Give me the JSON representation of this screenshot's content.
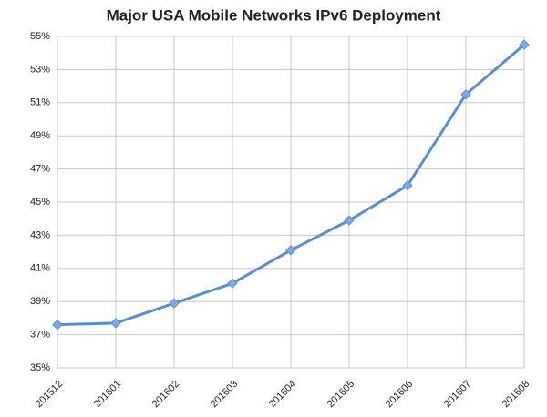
{
  "chart_data": {
    "type": "line",
    "title": "Major USA Mobile Networks IPv6 Deployment",
    "categories": [
      "201512",
      "201601",
      "201602",
      "201603",
      "201604",
      "201605",
      "201606",
      "201607",
      "201608"
    ],
    "values": [
      37.6,
      37.7,
      38.9,
      40.1,
      42.1,
      43.9,
      46.0,
      51.5,
      54.5
    ],
    "color": "#5a8ed0",
    "marker_color": "#7fa9e0",
    "ylim": [
      35,
      55
    ],
    "yticks": [
      {
        "value": 35,
        "label": "35%"
      },
      {
        "value": 37,
        "label": "37%"
      },
      {
        "value": 39,
        "label": "39%"
      },
      {
        "value": 41,
        "label": "41%"
      },
      {
        "value": 43,
        "label": "43%"
      },
      {
        "value": 45,
        "label": "45%"
      },
      {
        "value": 47,
        "label": "47%"
      },
      {
        "value": 49,
        "label": "49%"
      },
      {
        "value": 51,
        "label": "51%"
      },
      {
        "value": 53,
        "label": "53%"
      },
      {
        "value": 55,
        "label": "55%"
      }
    ],
    "grid": true
  }
}
